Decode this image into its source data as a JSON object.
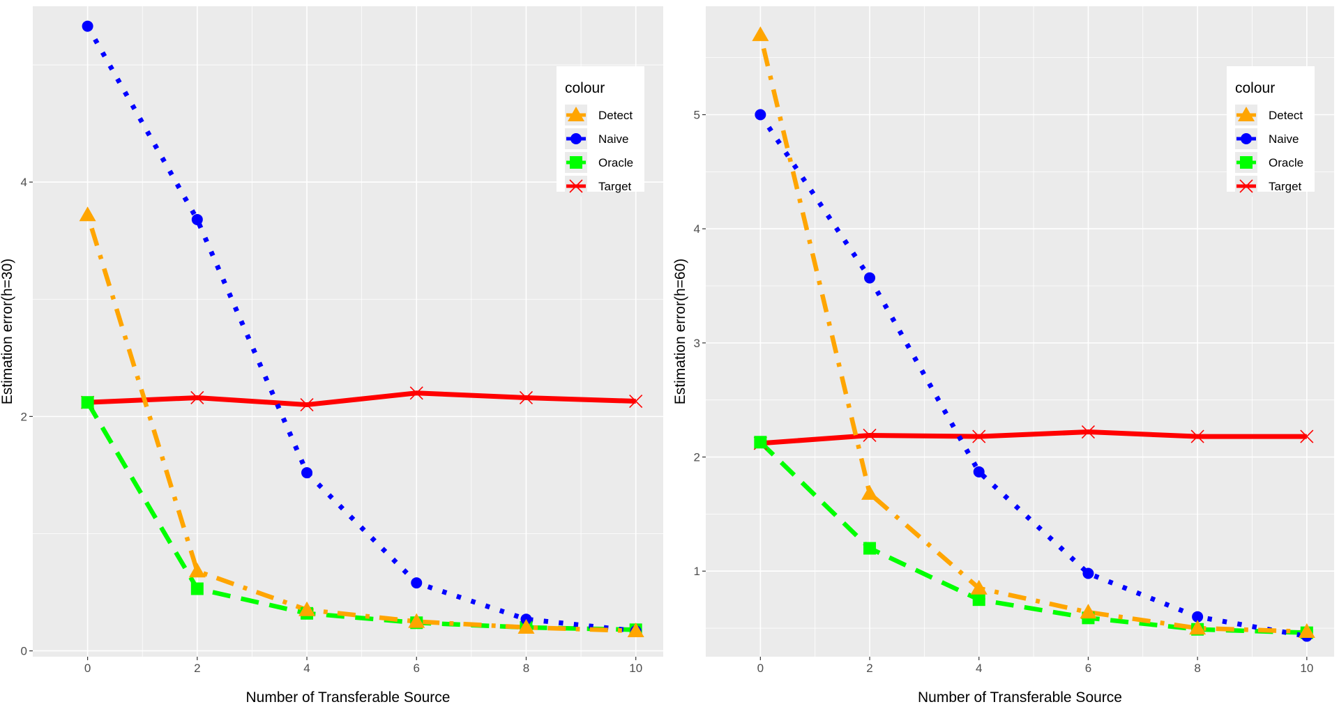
{
  "chart_data": [
    {
      "type": "line",
      "xlabel": "Number of Transferable Source",
      "ylabel": "Estimation error(h=30)",
      "x": [
        0,
        2,
        4,
        6,
        8,
        10
      ],
      "xlim": [
        -1,
        10.5
      ],
      "ylim": [
        -0.05,
        5.5
      ],
      "xticks": [
        0,
        2,
        4,
        6,
        8,
        10
      ],
      "xtick_labels": [
        "0",
        "2",
        "4",
        "6",
        "8",
        "10"
      ],
      "yticks": [
        0,
        2,
        4
      ],
      "ytick_labels": [
        "0",
        "2",
        "4"
      ],
      "grid": true,
      "legend_position": "top-right",
      "legend_title": "colour",
      "series": [
        {
          "name": "Detect",
          "color": "#FFA500",
          "marker": "triangle",
          "dash": "dotdash",
          "values": [
            3.72,
            0.68,
            0.35,
            0.25,
            0.2,
            0.17
          ]
        },
        {
          "name": "Naive",
          "color": "#0000FF",
          "marker": "circle",
          "dash": "dotted",
          "values": [
            5.33,
            3.68,
            1.52,
            0.58,
            0.27,
            0.17
          ]
        },
        {
          "name": "Oracle",
          "color": "#00FF00",
          "marker": "square",
          "dash": "dashed",
          "values": [
            2.12,
            0.53,
            0.32,
            0.24,
            0.2,
            0.18
          ]
        },
        {
          "name": "Target",
          "color": "#FF0000",
          "marker": "cross",
          "dash": "solid",
          "values": [
            2.12,
            2.16,
            2.1,
            2.2,
            2.16,
            2.13
          ]
        }
      ]
    },
    {
      "type": "line",
      "xlabel": "Number of Transferable Source",
      "ylabel": "Estimation error(h=60)",
      "x": [
        0,
        2,
        4,
        6,
        8,
        10
      ],
      "xlim": [
        -1,
        10.5
      ],
      "ylim": [
        0.25,
        5.95
      ],
      "xticks": [
        0,
        2,
        4,
        6,
        8,
        10
      ],
      "xtick_labels": [
        "0",
        "2",
        "4",
        "6",
        "8",
        "10"
      ],
      "yticks": [
        1,
        2,
        3,
        4,
        5
      ],
      "ytick_labels": [
        "1",
        "2",
        "3",
        "4",
        "5"
      ],
      "grid": true,
      "legend_position": "top-right",
      "legend_title": "colour",
      "series": [
        {
          "name": "Detect",
          "color": "#FFA500",
          "marker": "triangle",
          "dash": "dotdash",
          "values": [
            5.7,
            1.68,
            0.85,
            0.64,
            0.5,
            0.47
          ]
        },
        {
          "name": "Naive",
          "color": "#0000FF",
          "marker": "circle",
          "dash": "dotted",
          "values": [
            5.0,
            3.57,
            1.87,
            0.98,
            0.6,
            0.43
          ]
        },
        {
          "name": "Oracle",
          "color": "#00FF00",
          "marker": "square",
          "dash": "dashed",
          "values": [
            2.13,
            1.2,
            0.75,
            0.59,
            0.49,
            0.46
          ]
        },
        {
          "name": "Target",
          "color": "#FF0000",
          "marker": "cross",
          "dash": "solid",
          "values": [
            2.12,
            2.19,
            2.18,
            2.22,
            2.18,
            2.18
          ]
        }
      ]
    }
  ]
}
